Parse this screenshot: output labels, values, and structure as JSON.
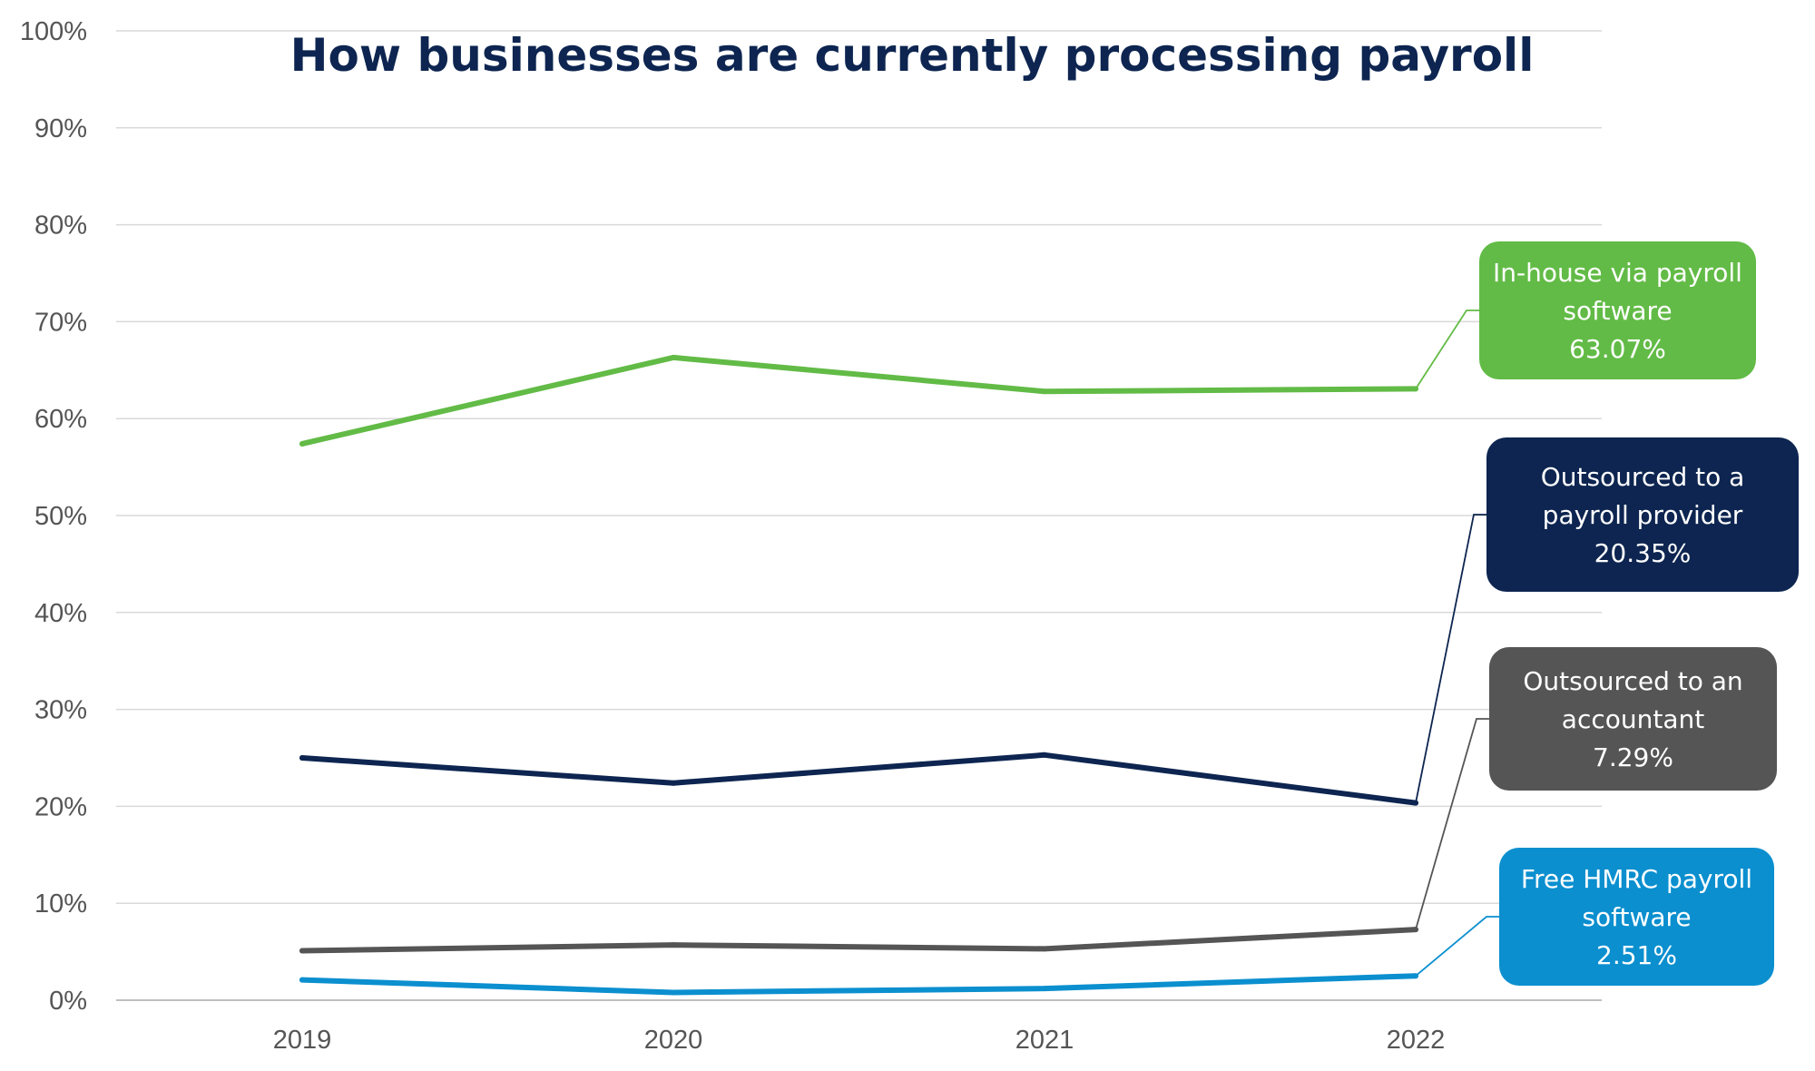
{
  "chart_data": {
    "type": "line",
    "title": "How businesses are currently processing payroll",
    "xlabel": "",
    "ylabel": "",
    "x": [
      "2019",
      "2020",
      "2021",
      "2022"
    ],
    "ylim": [
      0,
      100
    ],
    "yticks": [
      "0%",
      "10%",
      "20%",
      "30%",
      "40%",
      "50%",
      "60%",
      "70%",
      "80%",
      "90%",
      "100%"
    ],
    "grid": true,
    "series": [
      {
        "id": "in-house",
        "color": "#62bb46",
        "values": [
          57.4,
          66.3,
          62.8,
          63.07
        ],
        "label_lines": [
          "In-house via payroll",
          "software",
          "63.07%"
        ]
      },
      {
        "id": "payroll-provider",
        "color": "#0d2550",
        "values": [
          25.0,
          22.4,
          25.3,
          20.35
        ],
        "label_lines": [
          "Outsourced to a",
          "payroll provider",
          "20.35%"
        ]
      },
      {
        "id": "accountant",
        "color": "#555555",
        "values": [
          5.1,
          5.7,
          5.3,
          7.29
        ],
        "label_lines": [
          "Outsourced to an",
          "accountant",
          "7.29%"
        ]
      },
      {
        "id": "hmrc",
        "color": "#0b8fcf",
        "values": [
          2.1,
          0.8,
          1.2,
          2.51
        ],
        "label_lines": [
          "Free HMRC payroll",
          "software",
          "2.51%"
        ]
      }
    ]
  }
}
